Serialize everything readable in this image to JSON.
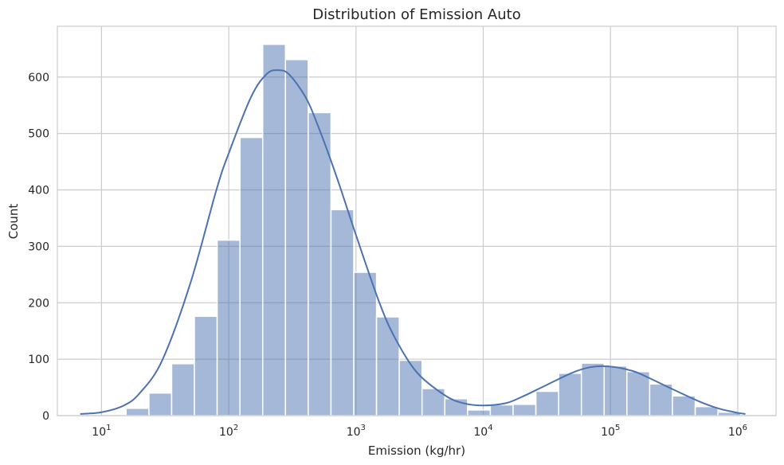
{
  "chart_data": {
    "type": "histogram",
    "title": "Distribution of Emission Auto",
    "xlabel": "Emission (kg/hr)",
    "ylabel": "Count",
    "x_scale": "log",
    "x_tick_labels": [
      {
        "base": "10",
        "exp": "1",
        "value": 10
      },
      {
        "base": "10",
        "exp": "2",
        "value": 100
      },
      {
        "base": "10",
        "exp": "3",
        "value": 1000
      },
      {
        "base": "10",
        "exp": "4",
        "value": 10000
      },
      {
        "base": "10",
        "exp": "5",
        "value": 100000
      },
      {
        "base": "10",
        "exp": "6",
        "value": 1000000
      }
    ],
    "y_ticks": [
      0,
      100,
      200,
      300,
      400,
      500,
      600
    ],
    "y_tick_labels": [
      "0",
      "100",
      "200",
      "300",
      "400",
      "500",
      "600"
    ],
    "xlim": [
      4.5,
      2000000
    ],
    "ylim": [
      0,
      690
    ],
    "grid": true,
    "bins": [
      {
        "x0": 15.6,
        "x1": 23.6,
        "count": 13
      },
      {
        "x0": 23.6,
        "x1": 35.6,
        "count": 40
      },
      {
        "x0": 35.6,
        "x1": 53.7,
        "count": 92
      },
      {
        "x0": 53.7,
        "x1": 81.1,
        "count": 176
      },
      {
        "x0": 81.1,
        "x1": 122.5,
        "count": 311
      },
      {
        "x0": 122.5,
        "x1": 184.9,
        "count": 493
      },
      {
        "x0": 184.9,
        "x1": 279.1,
        "count": 658
      },
      {
        "x0": 279.1,
        "x1": 421.4,
        "count": 631
      },
      {
        "x0": 421.4,
        "x1": 636.2,
        "count": 537
      },
      {
        "x0": 636.2,
        "x1": 960.5,
        "count": 365
      },
      {
        "x0": 960.5,
        "x1": 1450,
        "count": 254
      },
      {
        "x0": 1450,
        "x1": 2189,
        "count": 175
      },
      {
        "x0": 2189,
        "x1": 3305,
        "count": 98
      },
      {
        "x0": 3305,
        "x1": 4990,
        "count": 48
      },
      {
        "x0": 4990,
        "x1": 7533,
        "count": 30
      },
      {
        "x0": 7533,
        "x1": 11373,
        "count": 10
      },
      {
        "x0": 11373,
        "x1": 17170,
        "count": 19
      },
      {
        "x0": 17170,
        "x1": 25922,
        "count": 20
      },
      {
        "x0": 25922,
        "x1": 39135,
        "count": 43
      },
      {
        "x0": 39135,
        "x1": 59083,
        "count": 75
      },
      {
        "x0": 59083,
        "x1": 89198,
        "count": 93
      },
      {
        "x0": 89198,
        "x1": 134664,
        "count": 88
      },
      {
        "x0": 134664,
        "x1": 203304,
        "count": 78
      },
      {
        "x0": 203304,
        "x1": 306932,
        "count": 56
      },
      {
        "x0": 306932,
        "x1": 463381,
        "count": 35
      },
      {
        "x0": 463381,
        "x1": 699569,
        "count": 16
      },
      {
        "x0": 699569,
        "x1": 1056145,
        "count": 6
      }
    ],
    "kde": {
      "x": [
        6.8,
        10,
        15,
        20,
        30,
        50,
        80,
        100,
        150,
        200,
        250,
        300,
        400,
        500,
        700,
        1000,
        1500,
        2000,
        3000,
        5000,
        7000,
        10000,
        15000,
        20000,
        30000,
        50000,
        70000,
        100000,
        150000,
        200000,
        300000,
        500000,
        700000,
        1000000,
        1150000
      ],
      "y": [
        3,
        6,
        18,
        40,
        98,
        235,
        400,
        465,
        565,
        606,
        612,
        604,
        565,
        515,
        425,
        320,
        205,
        140,
        77,
        36,
        22,
        18,
        22,
        33,
        52,
        76,
        86,
        87,
        79,
        67,
        48,
        25,
        13,
        5,
        3
      ]
    },
    "colors": {
      "bar": "#4c72b0",
      "kde": "#4c72b0",
      "grid": "#cccccc"
    }
  }
}
